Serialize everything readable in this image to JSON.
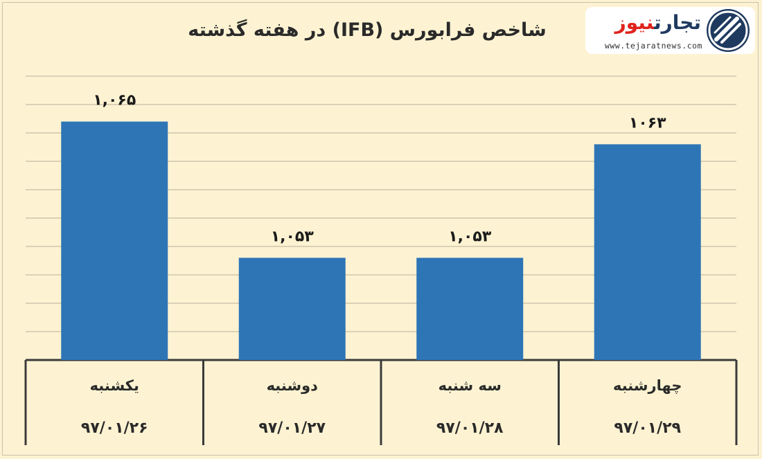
{
  "chart_data": {
    "type": "bar",
    "title": "شاخص فرابورس (IFB) در هفته گذشته",
    "categories": [
      "یکشنبه",
      "دوشنبه",
      "سه شنبه",
      "چهارشنبه"
    ],
    "dates": [
      "۹۷/۰۱/۲۶",
      "۹۷/۰۱/۲۷",
      "۹۷/۰۱/۲۸",
      "۹۷/۰۱/۲۹"
    ],
    "values": [
      1065,
      1053,
      1053,
      1063
    ],
    "data_labels": [
      "۱,۰۶۵",
      "۱,۰۵۳",
      "۱,۰۵۳",
      "۱۰۶۳"
    ],
    "ylim": [
      1044,
      1069
    ],
    "grid": true,
    "bar_color": "#2e75b6",
    "grid_color": "#cfc6ae"
  },
  "logo": {
    "word1": "تجارت",
    "word2": "نیوز",
    "url": "www.tejaratnews.com",
    "icon": "tejaratnews-emblem-icon"
  }
}
